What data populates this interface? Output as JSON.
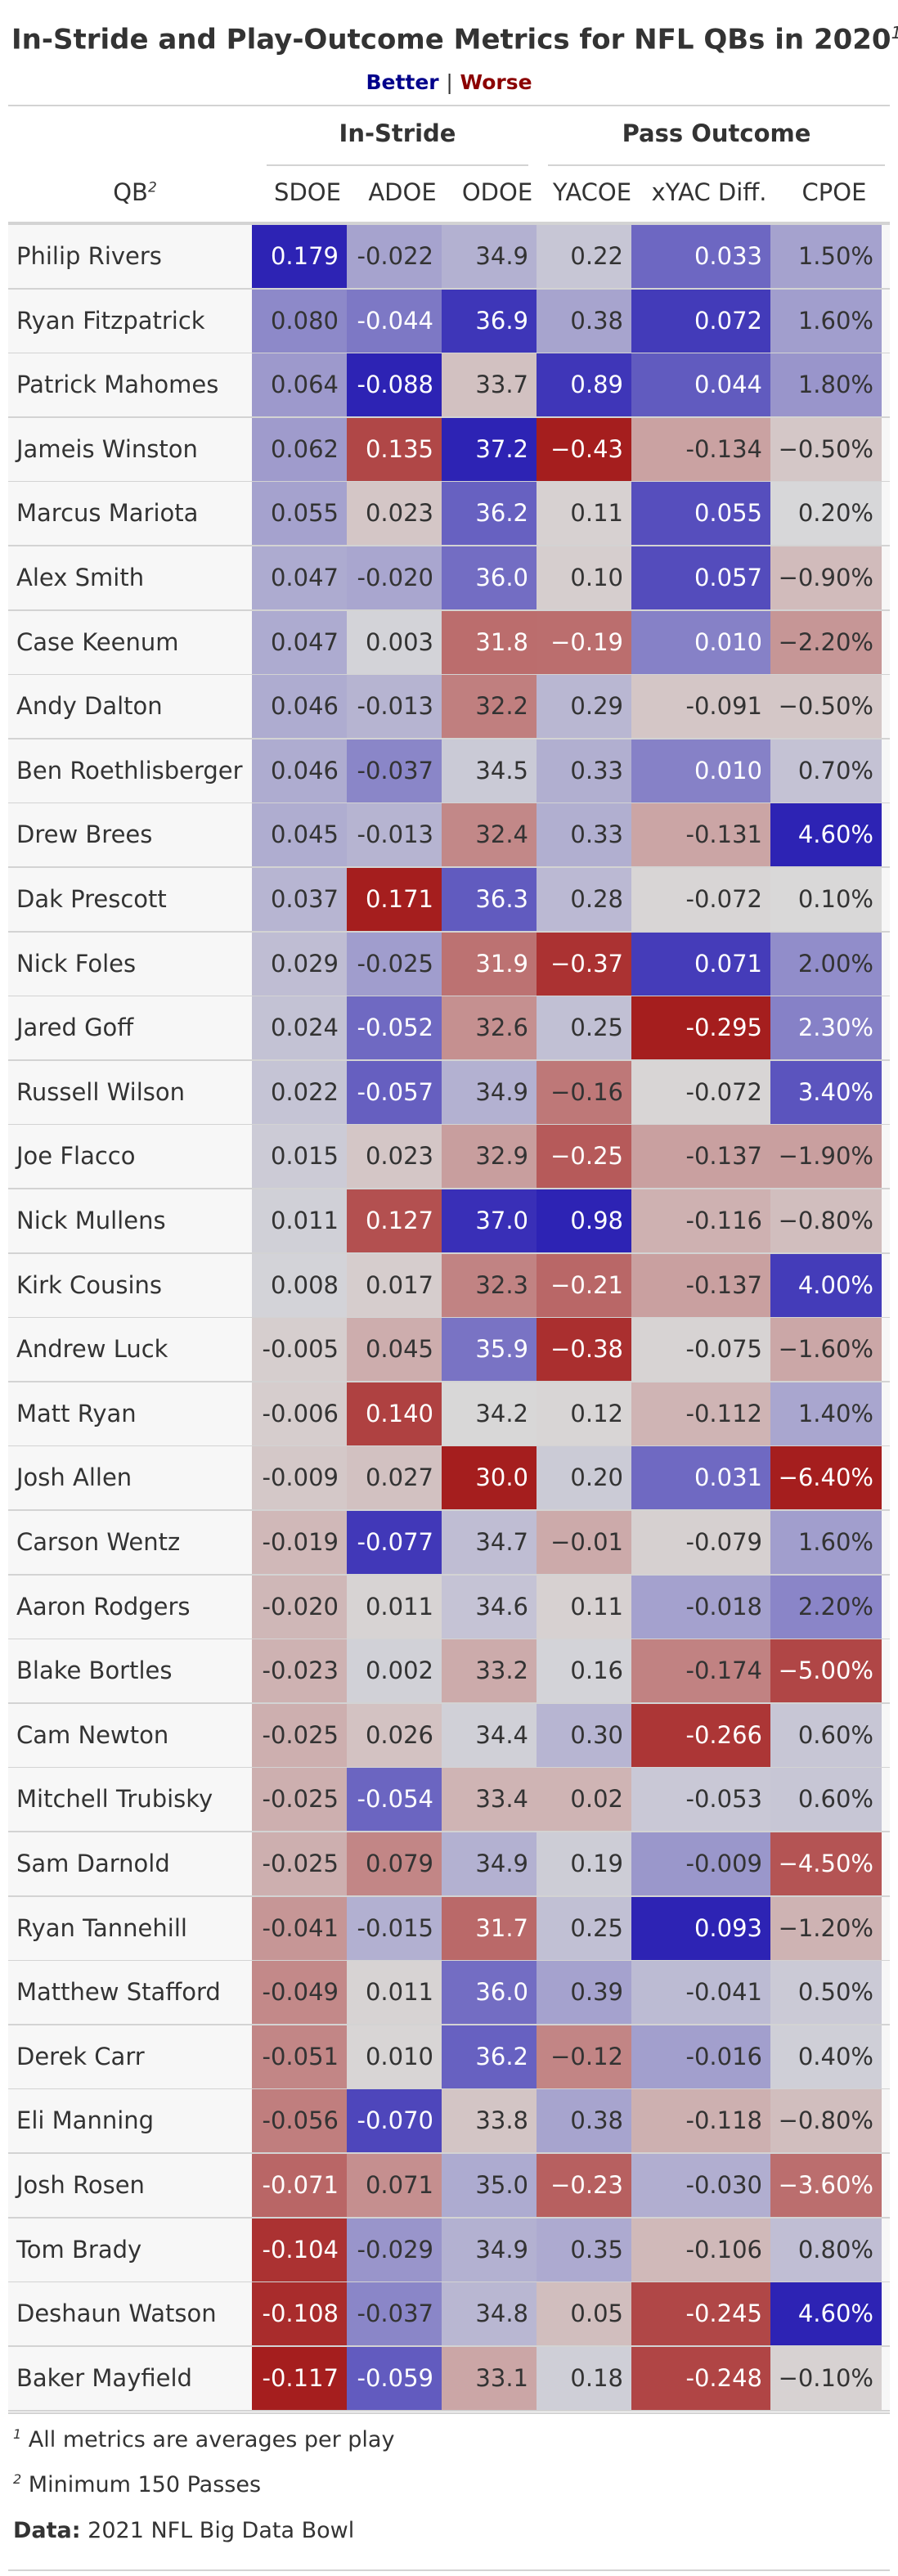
{
  "title": "In-Stride and Play-Outcome Metrics for NFL QBs in 2020",
  "title_note_marker": "1",
  "subtitle": {
    "better": "Better",
    "separator": "|",
    "worse": "Worse"
  },
  "colors": {
    "better": "#00008b",
    "worse": "#8b0000",
    "neutral": "#d9d9d9",
    "text_light": "#ffffff",
    "text_dark": "#333333"
  },
  "spanners": {
    "in_stride": "In-Stride",
    "pass_outcome": "Pass Outcome"
  },
  "columns": {
    "qb": "QB",
    "qb_note_marker": "2",
    "sdoe": "SDOE",
    "adoe": "ADOE",
    "odoe": "ODOE",
    "yacoe": "YACOE",
    "xyac_diff": "xYAC Diff.",
    "cpoe": "CPOE"
  },
  "rows": [
    {
      "qb": "Philip Rivers",
      "sdoe": "0.179",
      "adoe": "-0.022",
      "odoe": "34.9",
      "yacoe": "0.22",
      "xyac": "0.033",
      "cpoe": "1.50%"
    },
    {
      "qb": "Ryan Fitzpatrick",
      "sdoe": "0.080",
      "adoe": "-0.044",
      "odoe": "36.9",
      "yacoe": "0.38",
      "xyac": "0.072",
      "cpoe": "1.60%"
    },
    {
      "qb": "Patrick Mahomes",
      "sdoe": "0.064",
      "adoe": "-0.088",
      "odoe": "33.7",
      "yacoe": "0.89",
      "xyac": "0.044",
      "cpoe": "1.80%"
    },
    {
      "qb": "Jameis Winston",
      "sdoe": "0.062",
      "adoe": "0.135",
      "odoe": "37.2",
      "yacoe": "−0.43",
      "xyac": "-0.134",
      "cpoe": "−0.50%"
    },
    {
      "qb": "Marcus Mariota",
      "sdoe": "0.055",
      "adoe": "0.023",
      "odoe": "36.2",
      "yacoe": "0.11",
      "xyac": "0.055",
      "cpoe": "0.20%"
    },
    {
      "qb": "Alex Smith",
      "sdoe": "0.047",
      "adoe": "-0.020",
      "odoe": "36.0",
      "yacoe": "0.10",
      "xyac": "0.057",
      "cpoe": "−0.90%"
    },
    {
      "qb": "Case Keenum",
      "sdoe": "0.047",
      "adoe": "0.003",
      "odoe": "31.8",
      "yacoe": "−0.19",
      "xyac": "0.010",
      "cpoe": "−2.20%"
    },
    {
      "qb": "Andy Dalton",
      "sdoe": "0.046",
      "adoe": "-0.013",
      "odoe": "32.2",
      "yacoe": "0.29",
      "xyac": "-0.091",
      "cpoe": "−0.50%"
    },
    {
      "qb": "Ben Roethlisberger",
      "sdoe": "0.046",
      "adoe": "-0.037",
      "odoe": "34.5",
      "yacoe": "0.33",
      "xyac": "0.010",
      "cpoe": "0.70%"
    },
    {
      "qb": "Drew Brees",
      "sdoe": "0.045",
      "adoe": "-0.013",
      "odoe": "32.4",
      "yacoe": "0.33",
      "xyac": "-0.131",
      "cpoe": "4.60%"
    },
    {
      "qb": "Dak Prescott",
      "sdoe": "0.037",
      "adoe": "0.171",
      "odoe": "36.3",
      "yacoe": "0.28",
      "xyac": "-0.072",
      "cpoe": "0.10%"
    },
    {
      "qb": "Nick Foles",
      "sdoe": "0.029",
      "adoe": "-0.025",
      "odoe": "31.9",
      "yacoe": "−0.37",
      "xyac": "0.071",
      "cpoe": "2.00%"
    },
    {
      "qb": "Jared Goff",
      "sdoe": "0.024",
      "adoe": "-0.052",
      "odoe": "32.6",
      "yacoe": "0.25",
      "xyac": "-0.295",
      "cpoe": "2.30%"
    },
    {
      "qb": "Russell Wilson",
      "sdoe": "0.022",
      "adoe": "-0.057",
      "odoe": "34.9",
      "yacoe": "−0.16",
      "xyac": "-0.072",
      "cpoe": "3.40%"
    },
    {
      "qb": "Joe Flacco",
      "sdoe": "0.015",
      "adoe": "0.023",
      "odoe": "32.9",
      "yacoe": "−0.25",
      "xyac": "-0.137",
      "cpoe": "−1.90%"
    },
    {
      "qb": "Nick Mullens",
      "sdoe": "0.011",
      "adoe": "0.127",
      "odoe": "37.0",
      "yacoe": "0.98",
      "xyac": "-0.116",
      "cpoe": "−0.80%"
    },
    {
      "qb": "Kirk Cousins",
      "sdoe": "0.008",
      "adoe": "0.017",
      "odoe": "32.3",
      "yacoe": "−0.21",
      "xyac": "-0.137",
      "cpoe": "4.00%"
    },
    {
      "qb": "Andrew Luck",
      "sdoe": "-0.005",
      "adoe": "0.045",
      "odoe": "35.9",
      "yacoe": "−0.38",
      "xyac": "-0.075",
      "cpoe": "−1.60%"
    },
    {
      "qb": "Matt Ryan",
      "sdoe": "-0.006",
      "adoe": "0.140",
      "odoe": "34.2",
      "yacoe": "0.12",
      "xyac": "-0.112",
      "cpoe": "1.40%"
    },
    {
      "qb": "Josh Allen",
      "sdoe": "-0.009",
      "adoe": "0.027",
      "odoe": "30.0",
      "yacoe": "0.20",
      "xyac": "0.031",
      "cpoe": "−6.40%"
    },
    {
      "qb": "Carson Wentz",
      "sdoe": "-0.019",
      "adoe": "-0.077",
      "odoe": "34.7",
      "yacoe": "−0.01",
      "xyac": "-0.079",
      "cpoe": "1.60%"
    },
    {
      "qb": "Aaron Rodgers",
      "sdoe": "-0.020",
      "adoe": "0.011",
      "odoe": "34.6",
      "yacoe": "0.11",
      "xyac": "-0.018",
      "cpoe": "2.20%"
    },
    {
      "qb": "Blake Bortles",
      "sdoe": "-0.023",
      "adoe": "0.002",
      "odoe": "33.2",
      "yacoe": "0.16",
      "xyac": "-0.174",
      "cpoe": "−5.00%"
    },
    {
      "qb": "Cam Newton",
      "sdoe": "-0.025",
      "adoe": "0.026",
      "odoe": "34.4",
      "yacoe": "0.30",
      "xyac": "-0.266",
      "cpoe": "0.60%"
    },
    {
      "qb": "Mitchell Trubisky",
      "sdoe": "-0.025",
      "adoe": "-0.054",
      "odoe": "33.4",
      "yacoe": "0.02",
      "xyac": "-0.053",
      "cpoe": "0.60%"
    },
    {
      "qb": "Sam Darnold",
      "sdoe": "-0.025",
      "adoe": "0.079",
      "odoe": "34.9",
      "yacoe": "0.19",
      "xyac": "-0.009",
      "cpoe": "−4.50%"
    },
    {
      "qb": "Ryan Tannehill",
      "sdoe": "-0.041",
      "adoe": "-0.015",
      "odoe": "31.7",
      "yacoe": "0.25",
      "xyac": "0.093",
      "cpoe": "−1.20%"
    },
    {
      "qb": "Matthew Stafford",
      "sdoe": "-0.049",
      "adoe": "0.011",
      "odoe": "36.0",
      "yacoe": "0.39",
      "xyac": "-0.041",
      "cpoe": "0.50%"
    },
    {
      "qb": "Derek Carr",
      "sdoe": "-0.051",
      "adoe": "0.010",
      "odoe": "36.2",
      "yacoe": "−0.12",
      "xyac": "-0.016",
      "cpoe": "0.40%"
    },
    {
      "qb": "Eli Manning",
      "sdoe": "-0.056",
      "adoe": "-0.070",
      "odoe": "33.8",
      "yacoe": "0.38",
      "xyac": "-0.118",
      "cpoe": "−0.80%"
    },
    {
      "qb": "Josh Rosen",
      "sdoe": "-0.071",
      "adoe": "0.071",
      "odoe": "35.0",
      "yacoe": "−0.23",
      "xyac": "-0.030",
      "cpoe": "−3.60%"
    },
    {
      "qb": "Tom Brady",
      "sdoe": "-0.104",
      "adoe": "-0.029",
      "odoe": "34.9",
      "yacoe": "0.35",
      "xyac": "-0.106",
      "cpoe": "0.80%"
    },
    {
      "qb": "Deshaun Watson",
      "sdoe": "-0.108",
      "adoe": "-0.037",
      "odoe": "34.8",
      "yacoe": "0.05",
      "xyac": "-0.245",
      "cpoe": "4.60%"
    },
    {
      "qb": "Baker Mayfield",
      "sdoe": "-0.117",
      "adoe": "-0.059",
      "odoe": "33.1",
      "yacoe": "0.18",
      "xyac": "-0.248",
      "cpoe": "−0.10%"
    }
  ],
  "footnotes": [
    {
      "marker": "1",
      "text": "All metrics are averages per play"
    },
    {
      "marker": "2",
      "text": "Minimum 150 Passes"
    }
  ],
  "source": {
    "label": "Data:",
    "text": "2021 NFL Big Data Bowl"
  }
}
